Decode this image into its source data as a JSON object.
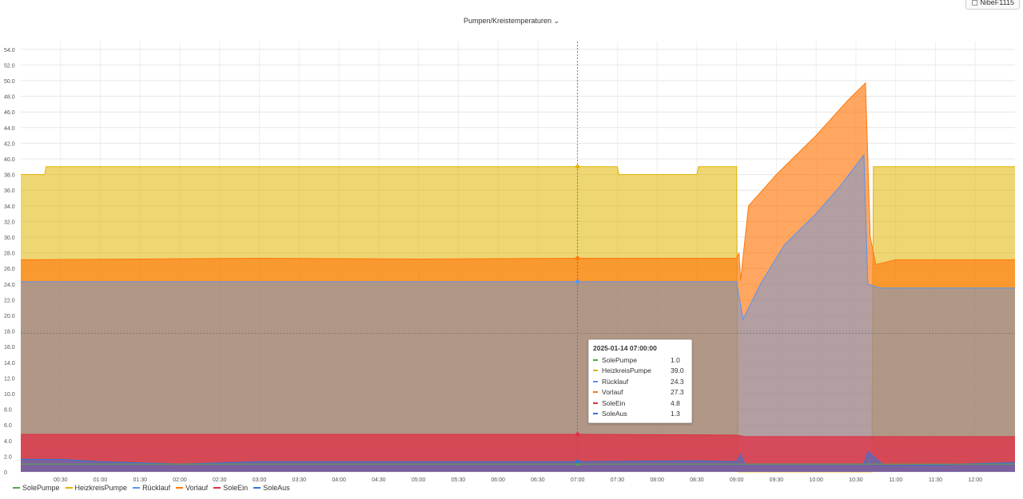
{
  "header": {
    "title": "Pumpen/Kreistemperaturen",
    "title_chevron": "⌄",
    "button_label": "NibeF1115"
  },
  "chart_data": {
    "type": "area",
    "title": "Pumpen/Kreistemperaturen",
    "xlabel": "",
    "ylabel": "",
    "ylim": [
      0,
      55
    ],
    "y_ticks": [
      0,
      2,
      4,
      6,
      8,
      10,
      12,
      14,
      16,
      18,
      20,
      22,
      24,
      26,
      28,
      30,
      32,
      34,
      36,
      38,
      40,
      42,
      44,
      46,
      48,
      50,
      52,
      54
    ],
    "x_ticks": [
      "00:30",
      "01:00",
      "01:30",
      "02:00",
      "02:30",
      "03:00",
      "03:30",
      "04:00",
      "04:30",
      "05:00",
      "05:30",
      "06:00",
      "06:30",
      "07:00",
      "07:30",
      "08:00",
      "08:30",
      "09:00",
      "09:30",
      "10:00",
      "10:30",
      "11:00",
      "11:30",
      "12:00"
    ],
    "grid": true,
    "legend_position": "bottom-left",
    "series": [
      {
        "name": "SolePumpe",
        "color": "#56a64b",
        "points": [
          [
            0,
            1.0
          ],
          [
            12.5,
            1.0
          ]
        ]
      },
      {
        "name": "HeizkreisPumpe",
        "color": "#e0b400",
        "points": [
          [
            0,
            38
          ],
          [
            0.3,
            38
          ],
          [
            0.32,
            39
          ],
          [
            7.5,
            39
          ],
          [
            7.52,
            38
          ],
          [
            8.5,
            38
          ],
          [
            8.52,
            39
          ],
          [
            9.0,
            39
          ],
          [
            9.02,
            0
          ],
          [
            10.7,
            0
          ],
          [
            10.72,
            39
          ],
          [
            12.5,
            39
          ]
        ]
      },
      {
        "name": "Rücklauf",
        "color": "#5794f2",
        "points": [
          [
            0,
            24.3
          ],
          [
            9.0,
            24.3
          ],
          [
            9.08,
            19.5
          ],
          [
            9.3,
            24
          ],
          [
            9.6,
            29
          ],
          [
            10.0,
            33
          ],
          [
            10.3,
            36.5
          ],
          [
            10.6,
            40.5
          ],
          [
            10.65,
            24
          ],
          [
            10.8,
            23.5
          ],
          [
            11.5,
            23.5
          ],
          [
            12.5,
            23.5
          ]
        ]
      },
      {
        "name": "Vorlauf",
        "color": "#ff780a",
        "points": [
          [
            0,
            27.1
          ],
          [
            1.5,
            27.2
          ],
          [
            3.0,
            27.3
          ],
          [
            5.0,
            27.2
          ],
          [
            7.0,
            27.3
          ],
          [
            8.5,
            27.3
          ],
          [
            9.0,
            27.3
          ],
          [
            9.03,
            28
          ],
          [
            9.05,
            24.5
          ],
          [
            9.15,
            34
          ],
          [
            9.5,
            38
          ],
          [
            10.0,
            43
          ],
          [
            10.4,
            47.5
          ],
          [
            10.62,
            49.7
          ],
          [
            10.68,
            30
          ],
          [
            10.75,
            26.5
          ],
          [
            11.0,
            27.1
          ],
          [
            12.5,
            27.1
          ]
        ]
      },
      {
        "name": "SoleEin",
        "color": "#e02f44",
        "points": [
          [
            0,
            4.8
          ],
          [
            7.0,
            4.8
          ],
          [
            9.0,
            4.7
          ],
          [
            9.1,
            4.5
          ],
          [
            12.5,
            4.5
          ]
        ]
      },
      {
        "name": "SoleAus",
        "color": "#3274d9",
        "points": [
          [
            0,
            1.6
          ],
          [
            0.5,
            1.6
          ],
          [
            1.0,
            1.3
          ],
          [
            2.0,
            1.0
          ],
          [
            3.0,
            1.3
          ],
          [
            7.0,
            1.3
          ],
          [
            8.5,
            1.4
          ],
          [
            9.0,
            1.3
          ],
          [
            9.05,
            2.2
          ],
          [
            9.1,
            1.0
          ],
          [
            10.6,
            1.0
          ],
          [
            10.65,
            2.6
          ],
          [
            10.85,
            0.8
          ],
          [
            11.5,
            0.9
          ],
          [
            12.5,
            1.2
          ]
        ]
      }
    ],
    "tooltip": {
      "time": "2025-01-14 07:00:00",
      "rows": [
        {
          "name": "SolePumpe",
          "value": "1.0",
          "color": "#56a64b"
        },
        {
          "name": "HeizkreisPumpe",
          "value": "39.0",
          "color": "#e0b400"
        },
        {
          "name": "Rücklauf",
          "value": "24.3",
          "color": "#5794f2"
        },
        {
          "name": "Vorlauf",
          "value": "27.3",
          "color": "#ff780a"
        },
        {
          "name": "SoleEin",
          "value": "4.8",
          "color": "#e02f44"
        },
        {
          "name": "SoleAus",
          "value": "1.3",
          "color": "#3274d9"
        }
      ]
    },
    "crosshair": {
      "time": 7.0,
      "value": 17.7
    }
  },
  "icons": {
    "dashboard_button": "dashboard-icon"
  }
}
